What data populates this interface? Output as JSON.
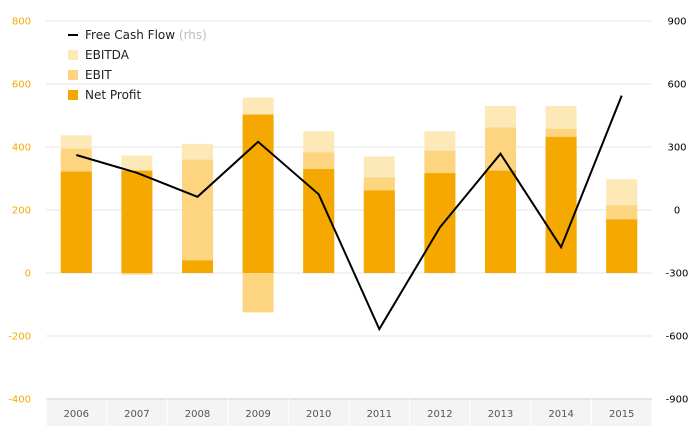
{
  "chart_data": {
    "type": "bar",
    "categories": [
      "2006",
      "2007",
      "2008",
      "2009",
      "2010",
      "2011",
      "2012",
      "2013",
      "2014",
      "2015"
    ],
    "series": [
      {
        "name": "EBITDA",
        "kind": "bar",
        "axis": "left",
        "color": "#fde9b8",
        "values": [
          437,
          373,
          410,
          557,
          450,
          370,
          450,
          530,
          530,
          298
        ]
      },
      {
        "name": "EBIT",
        "kind": "bar",
        "axis": "left",
        "color": "#fdd580",
        "values": [
          395,
          -5,
          360,
          -125,
          383,
          303,
          388,
          462,
          458,
          215
        ]
      },
      {
        "name": "Net Profit",
        "kind": "bar",
        "axis": "left",
        "color": "#f5a800",
        "values": [
          322,
          325,
          40,
          503,
          330,
          262,
          317,
          325,
          432,
          170
        ]
      },
      {
        "name": "Free Cash Flow",
        "kind": "line",
        "axis": "right",
        "color": "#000000",
        "values": [
          262,
          177,
          63,
          325,
          75,
          -567,
          -83,
          268,
          -177,
          545
        ]
      }
    ],
    "legend": {
      "position": "top-left",
      "items": [
        {
          "label": "Free Cash Flow",
          "suffix": "(rhs)",
          "color": "#000000",
          "symbol": "line"
        },
        {
          "label": "EBITDA",
          "suffix": "",
          "color": "#fde9b8",
          "symbol": "box"
        },
        {
          "label": "EBIT",
          "suffix": "",
          "color": "#fdd580",
          "symbol": "box"
        },
        {
          "label": "Net Profit",
          "suffix": "",
          "color": "#f5a800",
          "symbol": "box"
        }
      ]
    },
    "y_left": {
      "ylim": [
        -400,
        800
      ],
      "ticks": [
        "800",
        "600",
        "400",
        "200",
        "0",
        "-200",
        "-400"
      ],
      "tick_color": "#f5a800"
    },
    "y_right": {
      "ylim": [
        -900,
        900
      ],
      "ticks": [
        "900",
        "600",
        "300",
        "0",
        "-300",
        "-600",
        "-900"
      ],
      "tick_color": "#000000"
    },
    "grid": true,
    "title": "",
    "xlabel": "",
    "ylabel": ""
  }
}
